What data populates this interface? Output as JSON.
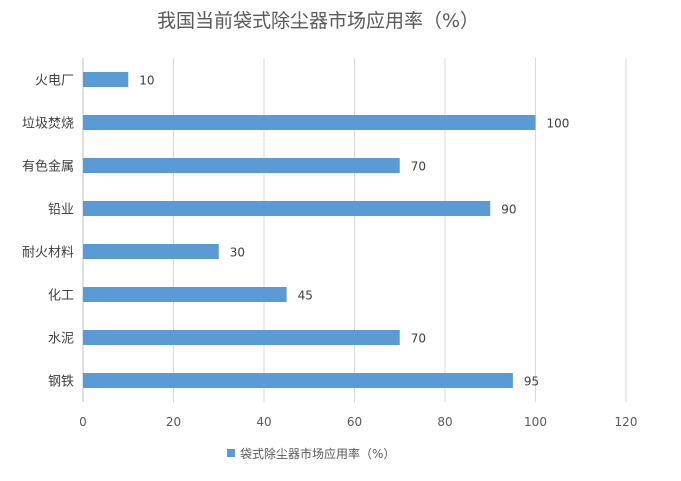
{
  "chart_data": {
    "type": "bar",
    "orientation": "horizontal",
    "title": "我国当前袋式除尘器市场应用率（%）",
    "categories": [
      "火电厂",
      "垃圾焚烧",
      "有色金属",
      "铅业",
      "耐火材料",
      "化工",
      "水泥",
      "钢铁"
    ],
    "series": [
      {
        "name": "袋式除尘器市场应用率（%）",
        "values": [
          10,
          100,
          70,
          90,
          30,
          45,
          70,
          95
        ]
      }
    ],
    "xlim": [
      0,
      120
    ],
    "xticks": [
      0,
      20,
      40,
      60,
      80,
      100,
      120
    ],
    "grid": true,
    "legend": "bottom",
    "colors": {
      "bar": "#5b9bd5",
      "grid": "#d9d9d9",
      "text": "#595959"
    }
  }
}
